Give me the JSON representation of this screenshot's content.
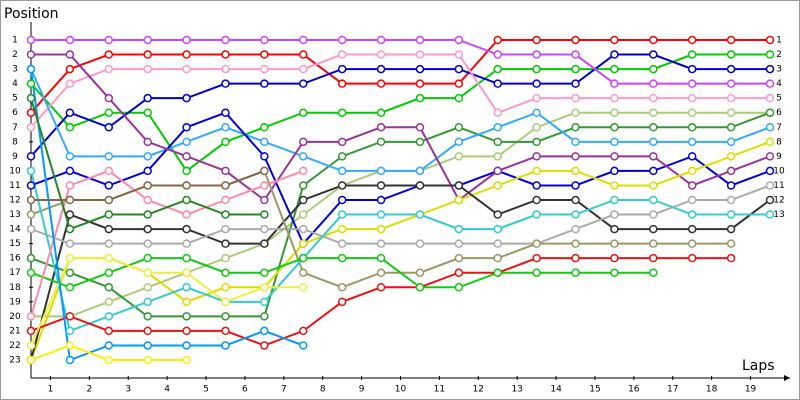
{
  "chart_data": {
    "type": "line",
    "y_label": "Position",
    "x_label": "Laps",
    "x": [
      0,
      1,
      2,
      3,
      4,
      5,
      6,
      7,
      8,
      9,
      10,
      11,
      12,
      13,
      14,
      15,
      16,
      17,
      18,
      19
    ],
    "xlim": [
      0,
      19
    ],
    "xticks": [
      {
        "value": 0.5,
        "label": "1"
      },
      {
        "value": 1.5,
        "label": "2"
      },
      {
        "value": 2.5,
        "label": "3"
      },
      {
        "value": 3.5,
        "label": "4"
      },
      {
        "value": 4.5,
        "label": "5"
      },
      {
        "value": 5.5,
        "label": "6"
      },
      {
        "value": 6.5,
        "label": "7"
      },
      {
        "value": 7.5,
        "label": "8"
      },
      {
        "value": 8.5,
        "label": "9"
      },
      {
        "value": 9.5,
        "label": "10"
      },
      {
        "value": 10.5,
        "label": "11"
      },
      {
        "value": 11.5,
        "label": "12"
      },
      {
        "value": 12.5,
        "label": "13"
      },
      {
        "value": 13.5,
        "label": "14"
      },
      {
        "value": 14.5,
        "label": "15"
      },
      {
        "value": 15.5,
        "label": "16"
      },
      {
        "value": 16.5,
        "label": "17"
      },
      {
        "value": 17.5,
        "label": "18"
      },
      {
        "value": 18.5,
        "label": "19"
      }
    ],
    "ylim": [
      23,
      1
    ],
    "yticks": [
      1,
      2,
      3,
      4,
      5,
      6,
      7,
      8,
      9,
      10,
      11,
      12,
      13,
      14,
      15,
      16,
      17,
      18,
      19,
      20,
      21,
      22,
      23
    ],
    "y2lim": [
      23,
      1
    ],
    "y2ticks": [
      1,
      2,
      3,
      4,
      5,
      6,
      7,
      8,
      9,
      10,
      11,
      12,
      13
    ],
    "series": [
      {
        "color": "#ff0000",
        "values": [
          6,
          3,
          2,
          2,
          2,
          2,
          2,
          2,
          4,
          4,
          4,
          4,
          1,
          1,
          1,
          1,
          1,
          1,
          1,
          1
        ]
      },
      {
        "color": "#00cc00",
        "values": [
          4,
          7,
          6,
          6,
          10,
          8,
          7,
          6,
          6,
          6,
          5,
          5,
          3,
          3,
          3,
          3,
          3,
          2,
          2,
          2
        ]
      },
      {
        "color": "#0000cc",
        "values": [
          9,
          6,
          7,
          5,
          5,
          4,
          4,
          4,
          3,
          3,
          3,
          3,
          4,
          4,
          4,
          2,
          2,
          3,
          3,
          3
        ]
      },
      {
        "color": "#cc44ff",
        "values": [
          1,
          1,
          1,
          1,
          1,
          1,
          1,
          1,
          1,
          1,
          1,
          1,
          2,
          2,
          2,
          4,
          4,
          4,
          4,
          4
        ]
      },
      {
        "color": "#ff99cc",
        "values": [
          7,
          4,
          3,
          3,
          3,
          3,
          3,
          3,
          2,
          2,
          2,
          2,
          6,
          5,
          5,
          5,
          5,
          5,
          5,
          5
        ]
      },
      {
        "color": "#aacc77",
        "values": [
          20,
          20,
          19,
          18,
          17,
          16,
          15,
          13,
          11,
          10,
          10,
          9,
          9,
          7,
          6,
          6,
          6,
          6,
          6,
          6
        ]
      },
      {
        "color": "#339933",
        "values": [
          16,
          17,
          18,
          20,
          20,
          20,
          20,
          11,
          9,
          8,
          8,
          7,
          8,
          8,
          7,
          7,
          7,
          7,
          7,
          6
        ]
      },
      {
        "color": "#33aaff",
        "values": [
          3,
          9,
          9,
          9,
          8,
          7,
          8,
          9,
          10,
          10,
          10,
          8,
          7,
          6,
          8,
          8,
          8,
          8,
          8,
          7
        ]
      },
      {
        "color": "#0000dd",
        "values": [
          11,
          10,
          11,
          10,
          7,
          6,
          9,
          15,
          12,
          12,
          11,
          11,
          10,
          11,
          11,
          10,
          10,
          9,
          11,
          10
        ]
      },
      {
        "color": "#993399",
        "values": [
          2,
          2,
          5,
          8,
          9,
          10,
          12,
          8,
          8,
          7,
          7,
          12,
          10,
          9,
          9,
          9,
          9,
          11,
          10,
          9
        ]
      },
      {
        "color": "#dddd00",
        "values": [
          23,
          16,
          16,
          17,
          19,
          18,
          18,
          15,
          14,
          14,
          13,
          12,
          11,
          10,
          10,
          11,
          11,
          10,
          9,
          8
        ]
      },
      {
        "color": "#333333",
        "values": [
          23,
          13,
          14,
          14,
          14,
          15,
          15,
          12,
          11,
          11,
          11,
          11,
          13,
          12,
          12,
          14,
          14,
          14,
          14,
          12
        ]
      },
      {
        "color": "#aaaaaa",
        "values": [
          14,
          15,
          15,
          15,
          15,
          14,
          14,
          14,
          15,
          15,
          15,
          15,
          15,
          15,
          14,
          13,
          13,
          12,
          12,
          11
        ]
      },
      {
        "color": "#999966",
        "values": [
          13,
          12,
          12,
          11,
          11,
          11,
          10,
          17,
          18,
          17,
          17,
          16,
          16,
          15,
          15,
          15,
          15,
          15,
          15,
          null
        ]
      },
      {
        "color": "#33cccc",
        "values": [
          10,
          21,
          20,
          19,
          18,
          19,
          19,
          16,
          13,
          13,
          13,
          14,
          14,
          13,
          13,
          12,
          12,
          13,
          13,
          13
        ]
      },
      {
        "color": "#ee1111",
        "values": [
          21,
          20,
          21,
          21,
          21,
          21,
          22,
          21,
          19,
          18,
          18,
          17,
          17,
          16,
          16,
          16,
          16,
          16,
          16,
          null
        ]
      },
      {
        "color": "#11cc11",
        "values": [
          17,
          18,
          17,
          16,
          16,
          17,
          17,
          16,
          16,
          16,
          18,
          18,
          17,
          17,
          17,
          17,
          17,
          null,
          null,
          null
        ]
      },
      {
        "color": "#ff88aa",
        "values": [
          20,
          11,
          10,
          12,
          13,
          12,
          11,
          10,
          null,
          null,
          null,
          null,
          null,
          null,
          null,
          null,
          null,
          null,
          null,
          null
        ]
      },
      {
        "color": "#eeee44",
        "values": [
          22,
          16,
          16,
          17,
          17,
          19,
          18,
          18,
          null,
          null,
          null,
          null,
          null,
          null,
          null,
          null,
          null,
          null,
          null,
          null
        ]
      },
      {
        "color": "#0099ff",
        "values": [
          3,
          23,
          22,
          22,
          22,
          22,
          21,
          22,
          null,
          null,
          null,
          null,
          null,
          null,
          null,
          null,
          null,
          null,
          null,
          null
        ]
      },
      {
        "color": "#228822",
        "values": [
          5,
          14,
          13,
          13,
          12,
          13,
          13,
          null,
          null,
          null,
          null,
          null,
          null,
          null,
          null,
          null,
          null,
          null,
          null,
          null
        ]
      },
      {
        "color": "#ffee00",
        "values": [
          23,
          22,
          23,
          23,
          23,
          null,
          null,
          null,
          null,
          null,
          null,
          null,
          null,
          null,
          null,
          null,
          null,
          null,
          null,
          null
        ]
      },
      {
        "color": "#886644",
        "values": [
          12,
          12,
          12,
          11,
          11,
          11,
          10,
          null,
          null,
          null,
          null,
          null,
          null,
          null,
          null,
          null,
          null,
          null,
          null,
          null
        ]
      }
    ]
  }
}
